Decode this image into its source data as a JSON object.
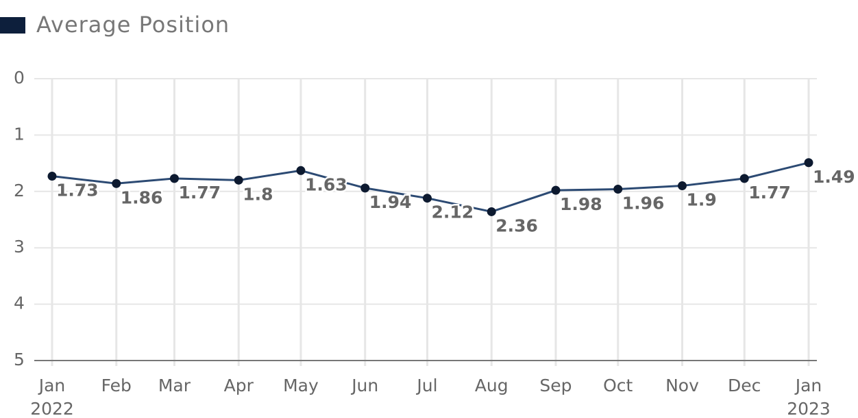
{
  "chart_data": {
    "type": "line",
    "legend": "Average Position",
    "x": [
      "2022-01",
      "2022-02",
      "2022-03",
      "2022-04",
      "2022-05",
      "2022-06",
      "2022-07",
      "2022-08",
      "2022-09",
      "2022-10",
      "2022-11",
      "2022-12",
      "2023-01"
    ],
    "xticks": [
      {
        "value": "2022-01",
        "label": "Jan 2022"
      },
      {
        "value": "2022-02",
        "label": "Feb"
      },
      {
        "value": "2022-03",
        "label": "Mar"
      },
      {
        "value": "2022-04",
        "label": "Apr"
      },
      {
        "value": "2022-05",
        "label": "May"
      },
      {
        "value": "2022-06",
        "label": "Jun"
      },
      {
        "value": "2022-07",
        "label": "Jul"
      },
      {
        "value": "2022-08",
        "label": "Aug"
      },
      {
        "value": "2022-09",
        "label": "Sep"
      },
      {
        "value": "2022-10",
        "label": "Oct"
      },
      {
        "value": "2022-11",
        "label": "Nov"
      },
      {
        "value": "2022-12",
        "label": "Dec"
      },
      {
        "value": "2023-01",
        "label": "Jan 2023"
      }
    ],
    "values": [
      1.73,
      1.86,
      1.77,
      1.8,
      1.63,
      1.94,
      2.12,
      2.36,
      1.98,
      1.96,
      1.9,
      1.77,
      1.49
    ],
    "color": "#2c4a73",
    "marker_color": "#0d1a30",
    "legend_color": "#0d1f3c",
    "ylim": [
      0,
      5
    ],
    "yticks": [
      0,
      1,
      2,
      3,
      4,
      5
    ],
    "y_inverted": true,
    "grid": true
  }
}
